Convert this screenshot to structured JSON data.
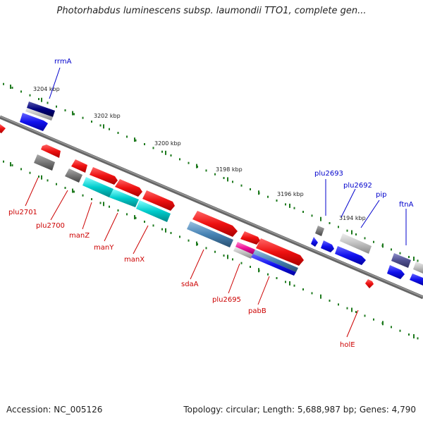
{
  "title": "Photorhabdus luminescens subsp. laumondii TTO1, complete gen...",
  "footer": {
    "accession": "Accession: NC_005126",
    "summary": "Topology: circular; Length: 5,688,987 bp; Genes: 4,790"
  },
  "colors": {
    "backbone": "#777777",
    "tick": "#1e7a1e",
    "forward_gene": "#1111ee",
    "reverse_gene": "#ee1111",
    "rna_gene": "#000080",
    "pseudo_gene": "#777777",
    "cyan_gene": "#00cccc",
    "steel_gene": "#4682b4",
    "magenta_gene": "#ee1199",
    "label_blue": "#0000cc",
    "label_red": "#cc0000"
  },
  "coordinate_labels": [
    "3204 kbp",
    "3202 kbp",
    "3200 kbp",
    "3198 kbp",
    "3196 kbp",
    "3194 kbp"
  ],
  "genes": [
    {
      "name": "rrmA",
      "color": "label_blue"
    },
    {
      "name": "plu2701",
      "color": "label_red"
    },
    {
      "name": "plu2700",
      "color": "label_red"
    },
    {
      "name": "manZ",
      "color": "label_red"
    },
    {
      "name": "manY",
      "color": "label_red"
    },
    {
      "name": "manX",
      "color": "label_red"
    },
    {
      "name": "sdaA",
      "color": "label_red"
    },
    {
      "name": "plu2695",
      "color": "label_red"
    },
    {
      "name": "pabB",
      "color": "label_red"
    },
    {
      "name": "plu2693",
      "color": "label_blue"
    },
    {
      "name": "plu2692",
      "color": "label_blue"
    },
    {
      "name": "pip",
      "color": "label_blue"
    },
    {
      "name": "ftnA",
      "color": "label_blue"
    },
    {
      "name": "holE",
      "color": "label_red"
    }
  ]
}
